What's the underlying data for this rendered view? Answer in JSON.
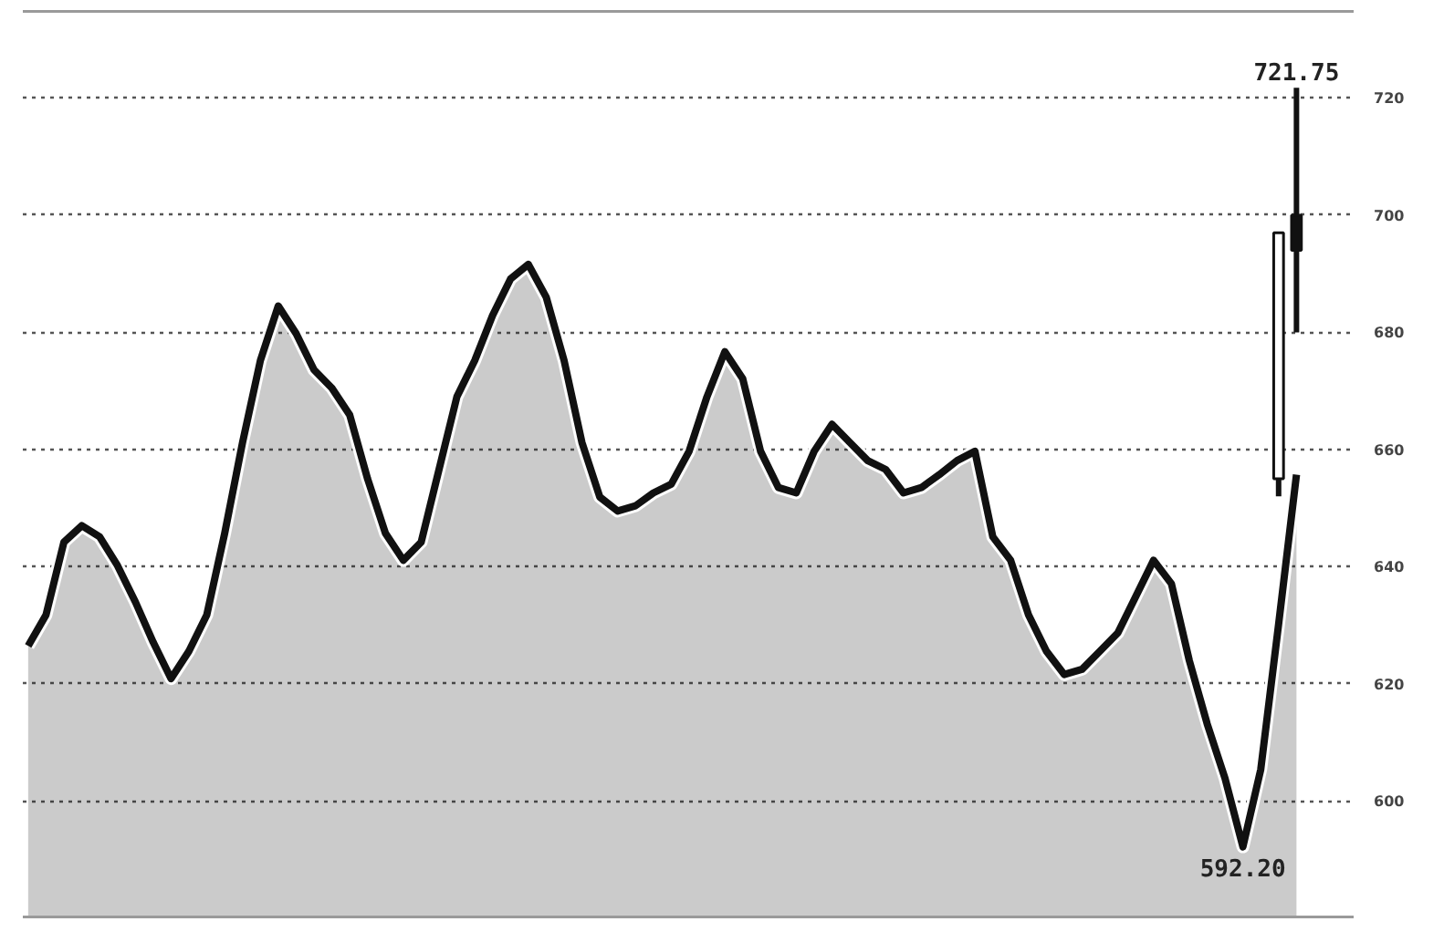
{
  "chart_data": {
    "type": "area",
    "categories": [
      null,
      null,
      null,
      null,
      null,
      null,
      null,
      null,
      null,
      null,
      null,
      null,
      null,
      null,
      null,
      null,
      null,
      null,
      null,
      null,
      null,
      null,
      null,
      null,
      null,
      null,
      null,
      null,
      null,
      null,
      null,
      null,
      null,
      null,
      null,
      null,
      null,
      null,
      null,
      null,
      null,
      null,
      null,
      null,
      null,
      null,
      null,
      null,
      null,
      null,
      null,
      null,
      null,
      null,
      null,
      null,
      null,
      null,
      null,
      null,
      null,
      null,
      null,
      null,
      null,
      null,
      null,
      null,
      null,
      null,
      null,
      null
    ],
    "series": [
      {
        "color": "#111111",
        "values": [
          626.5,
          631.8,
          644.2,
          647.0,
          645.1,
          640.2,
          634.0,
          627.1,
          620.9,
          625.6,
          631.8,
          645.7,
          661.2,
          675.2,
          684.5,
          679.8,
          673.6,
          670.5,
          665.9,
          655.0,
          645.7,
          641.1,
          644.2,
          656.6,
          669.0,
          675.2,
          682.9,
          689.1,
          691.6,
          686.0,
          675.2,
          661.2,
          651.9,
          649.5,
          650.4,
          652.6,
          654.1,
          659.7,
          669.0,
          676.7,
          672.1,
          659.7,
          653.5,
          652.6,
          659.7,
          664.3,
          661.2,
          658.1,
          656.6,
          652.6,
          653.5,
          655.7,
          658.1,
          659.7,
          645.1,
          641.1,
          631.8,
          625.6,
          621.6,
          622.5,
          625.6,
          628.7,
          634.9,
          641.1,
          637.1,
          624.0,
          613.2,
          603.9,
          592.2,
          605.4,
          630.2,
          655.7
        ]
      },
      {
        "type": "candlestick",
        "color": "#111111",
        "ohlc": [
          null,
          null,
          null,
          null,
          null,
          null,
          null,
          null,
          null,
          null,
          null,
          null,
          null,
          null,
          null,
          null,
          null,
          null,
          null,
          null,
          null,
          null,
          null,
          null,
          null,
          null,
          null,
          null,
          null,
          null,
          null,
          null,
          null,
          null,
          null,
          null,
          null,
          null,
          null,
          null,
          null,
          null,
          null,
          null,
          null,
          null,
          null,
          null,
          null,
          null,
          null,
          null,
          null,
          null,
          null,
          null,
          null,
          null,
          null,
          null,
          null,
          null,
          null,
          null,
          null,
          null,
          null,
          null,
          null,
          null,
          [
            655,
            697,
            652,
            697
          ],
          [
            700,
            721.75,
            680,
            694
          ]
        ]
      }
    ],
    "annotations": [
      {
        "text": "721.75",
        "y": 721.75
      },
      {
        "text": "592.20",
        "y": 592.2
      }
    ],
    "ylim": [
      580,
      735
    ],
    "yticks": [
      600,
      620,
      640,
      660,
      680,
      700,
      720
    ],
    "grid": "y",
    "tick_labels": "y"
  }
}
